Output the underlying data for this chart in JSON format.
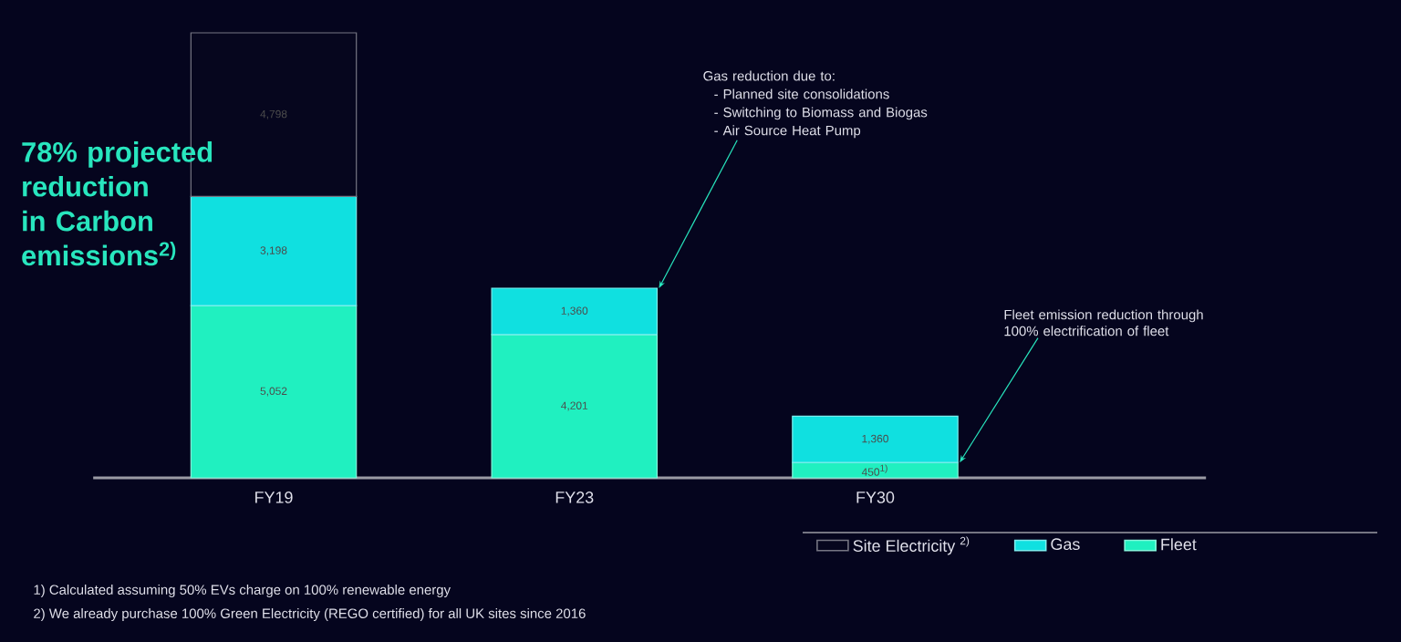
{
  "chart_data": {
    "type": "bar",
    "stacked": true,
    "title": "78% projected reduction in Carbon emissions$^{2)}$",
    "categories": [
      "FY19",
      "FY23",
      "FY30"
    ],
    "series": [
      {
        "name": "Fleet",
        "color": "#20f0c0",
        "values": [
          5052,
          4201,
          450
        ],
        "value_labels": [
          "5,052",
          "4,201",
          "450$^{1)}$"
        ]
      },
      {
        "name": "Gas",
        "color": "#10e0e0",
        "values": [
          3198,
          1360,
          1360
        ],
        "value_labels": [
          "3,198",
          "1,360",
          "1,360"
        ]
      },
      {
        "name": "Site Electricity $^{2)}$",
        "color": "#06061e",
        "values": [
          4798,
          null,
          null
        ],
        "value_labels": [
          "4,798",
          null,
          null
        ]
      }
    ],
    "tick_labels": "x",
    "legend": "bottom right",
    "grid": false,
    "annotations": [
      "Gas reduction due to:",
      "- Planned site consolidations",
      "- Switching to Biomass and Biogas",
      "- Air Source Heat Pump",
      "Fleet emission reduction through 100% electrification of fleet",
      "1) Calculated assuming 50% EVs charge on 100% renewable energy",
      "2) We already purchase 100% Green Electricity (REGO certified) for all UK sites since 2016"
    ]
  }
}
